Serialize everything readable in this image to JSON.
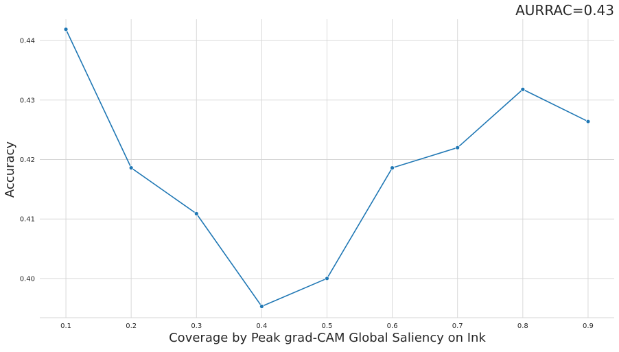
{
  "chart_data": {
    "type": "line",
    "title": "AURRAC=0.43",
    "xlabel": "Coverage by Peak grad-CAM Global Saliency on Ink",
    "ylabel": "Accuracy",
    "x": [
      0.1,
      0.2,
      0.3,
      0.4,
      0.5,
      0.6,
      0.7,
      0.8,
      0.9
    ],
    "series": [
      {
        "values": [
          0.4419,
          0.4186,
          0.4109,
          0.3953,
          0.4,
          0.4186,
          0.422,
          0.4318,
          0.4264
        ]
      }
    ],
    "xlim": [
      0.06,
      0.94
    ],
    "ylim": [
      0.3934,
      0.4436
    ],
    "x_ticks": [
      0.1,
      0.2,
      0.3,
      0.4,
      0.5,
      0.6,
      0.7,
      0.8,
      0.9
    ],
    "x_tick_labels": [
      "0.1",
      "0.2",
      "0.3",
      "0.4",
      "0.5",
      "0.6",
      "0.7",
      "0.8",
      "0.9"
    ],
    "y_ticks": [
      0.4,
      0.41,
      0.42,
      0.43,
      0.44
    ],
    "y_tick_labels": [
      "0.40",
      "0.41",
      "0.42",
      "0.43",
      "0.44"
    ],
    "grid": true,
    "line_color": "#1f77b4",
    "grid_color": "#d5d5d5",
    "marker": "circle"
  }
}
